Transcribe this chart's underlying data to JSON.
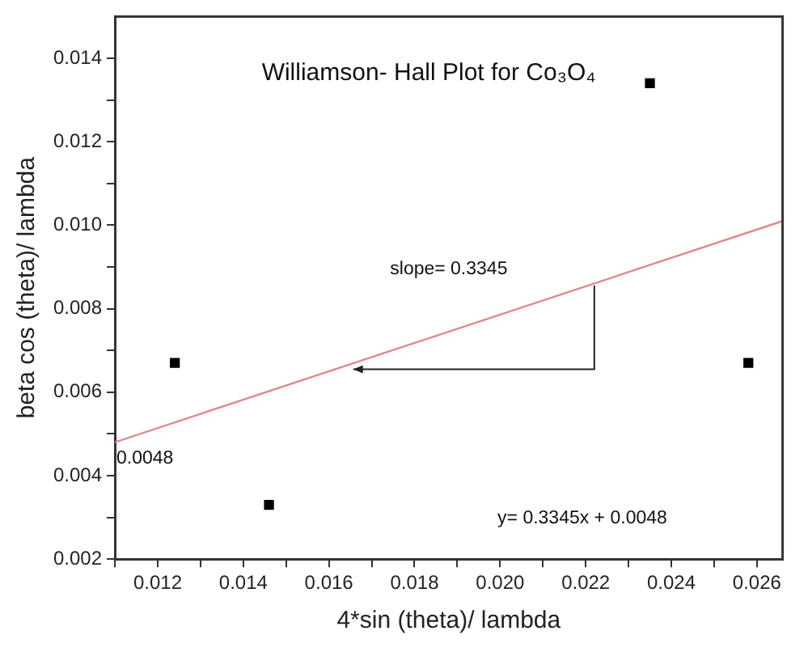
{
  "chart_data": {
    "type": "scatter",
    "title": "Williamson- Hall Plot for Co₃O₄",
    "xlabel": "4*sin (theta)/ lambda",
    "ylabel": "beta cos (theta)/ lambda",
    "xlim": [
      0.011,
      0.0266
    ],
    "ylim": [
      0.002,
      0.015
    ],
    "xticks": [
      {
        "value": 0.011,
        "label": null
      },
      0.012,
      {
        "value": 0.013,
        "label": null
      },
      0.014,
      {
        "value": 0.015,
        "label": null
      },
      0.016,
      {
        "value": 0.017,
        "label": null
      },
      0.018,
      {
        "value": 0.019,
        "label": null
      },
      {
        "value": 0.02,
        "label": "0.020"
      },
      {
        "value": 0.021,
        "label": null
      },
      0.022,
      {
        "value": 0.023,
        "label": null
      },
      0.024,
      {
        "value": 0.025,
        "label": null
      },
      0.026
    ],
    "yticks": [
      0.002,
      {
        "value": 0.003,
        "label": null
      },
      0.004,
      {
        "value": 0.005,
        "label": null
      },
      0.006,
      {
        "value": 0.007,
        "label": null
      },
      0.008,
      {
        "value": 0.009,
        "label": null
      },
      {
        "value": 0.01,
        "label": "0.010"
      },
      {
        "value": 0.011,
        "label": null
      },
      0.012,
      {
        "value": 0.013,
        "label": null
      },
      0.014
    ],
    "series": [
      {
        "type": "scatter",
        "color": "#000000",
        "x": [
          0.0124,
          0.0146,
          0.0235,
          0.0258
        ],
        "values": [
          0.0067,
          0.0033,
          0.0134,
          0.0067
        ],
        "marker": "square"
      },
      {
        "type": "line",
        "color": "#e08a8a",
        "x": [
          0.011,
          0.0266
        ],
        "values": [
          0.0048,
          0.0101
        ],
        "marker": "none"
      }
    ],
    "annotations": [
      "slope= 0.3345",
      {
        "text": "0.0048",
        "x": 0.011,
        "y": 0.0048
      },
      "y= 0.3345x + 0.0048"
    ],
    "grid": false,
    "legend": false
  }
}
